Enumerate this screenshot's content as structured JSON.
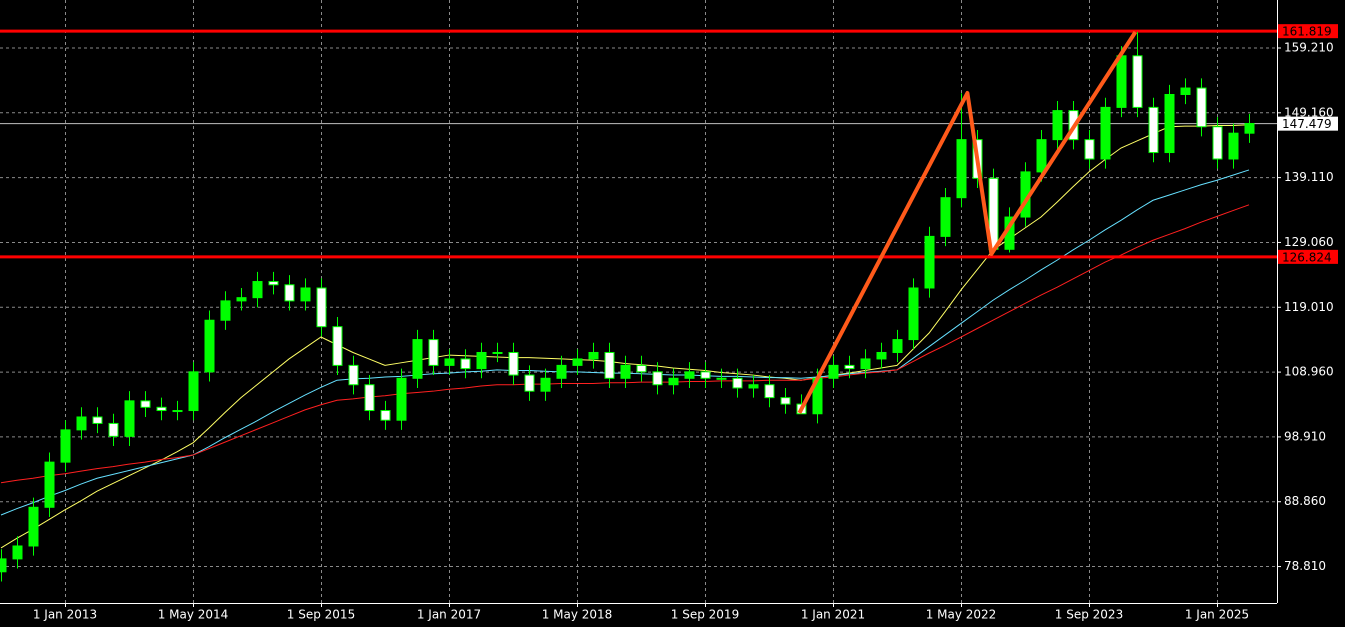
{
  "chart_data": {
    "type": "candlestick",
    "categories": [
      null,
      null,
      null,
      null,
      "1 Jan 2013",
      null,
      null,
      null,
      null,
      null,
      null,
      null,
      "1 May 2014",
      null,
      null,
      null,
      null,
      null,
      null,
      null,
      "1 Sep 2015",
      null,
      null,
      null,
      null,
      null,
      null,
      null,
      "1 Jan 2017",
      null,
      null,
      null,
      null,
      null,
      null,
      null,
      "1 May 2018",
      null,
      null,
      null,
      null,
      null,
      null,
      null,
      "1 Sep 2019",
      null,
      null,
      null,
      null,
      null,
      null,
      null,
      "1 Jan 2021",
      null,
      null,
      null,
      null,
      null,
      null,
      null,
      "1 May 2022",
      null,
      null,
      null,
      null,
      null,
      null,
      null,
      "1 Sep 2023",
      null,
      null,
      null,
      null,
      null,
      null,
      null,
      "1 Jan 2025",
      null,
      null
    ],
    "open": [
      78,
      80,
      82,
      88,
      95,
      100,
      102,
      101,
      99,
      104.5,
      103.5,
      103,
      103,
      109,
      117,
      120,
      120.5,
      123,
      122.5,
      120,
      122,
      116,
      110,
      107,
      103,
      101.5,
      108,
      114,
      110,
      111,
      109.5,
      112,
      112,
      108.5,
      106,
      108,
      110,
      111,
      112,
      108,
      110,
      109,
      107,
      108,
      109,
      108,
      108,
      106.5,
      107,
      105,
      104,
      102.5,
      108,
      110,
      109.5,
      111,
      112,
      114,
      122,
      130,
      136,
      145,
      139,
      128,
      133,
      140,
      145,
      149.5,
      145,
      142,
      150,
      158,
      150,
      143,
      152,
      153,
      147,
      142,
      146
    ],
    "high": [
      81.5,
      83.5,
      89.5,
      96.5,
      101.5,
      103.5,
      103.5,
      102.5,
      106,
      106,
      105,
      104.5,
      110.5,
      118.5,
      121.5,
      122,
      124.5,
      124.5,
      124,
      123.5,
      123.5,
      117.5,
      111.5,
      108.5,
      104.5,
      109.5,
      115.5,
      115.5,
      112.5,
      112.5,
      113.5,
      113.5,
      113.5,
      110,
      109.5,
      111.5,
      112.5,
      113.5,
      113.5,
      111.5,
      111.5,
      110.5,
      109.5,
      110.5,
      110.5,
      109.5,
      109.5,
      108.5,
      108.5,
      106.5,
      105.5,
      109.5,
      111.5,
      111.5,
      112.5,
      113.5,
      115.5,
      123.5,
      131.5,
      137.5,
      152.2,
      146.5,
      140.5,
      134.5,
      141.5,
      146.5,
      151,
      151,
      146.5,
      151.5,
      159.5,
      161.7,
      151.5,
      153.5,
      154.5,
      154.5,
      148.5,
      147.5,
      149
    ],
    "low": [
      76.5,
      78.5,
      80.5,
      86.5,
      93.5,
      98.5,
      99.5,
      97.5,
      97.5,
      102,
      101.5,
      101.5,
      101.5,
      107.5,
      115.5,
      118.5,
      119,
      121,
      118.5,
      118.5,
      114.5,
      108.5,
      105.5,
      101.5,
      100,
      100,
      106.5,
      108.5,
      108.5,
      108,
      108,
      110.5,
      107,
      104.5,
      104.5,
      106.5,
      108.5,
      109.5,
      106.5,
      106.5,
      107.5,
      105.5,
      105.5,
      106.5,
      106.5,
      106.5,
      105,
      105,
      103.5,
      102.5,
      102.6,
      101,
      106.5,
      108,
      108,
      109.5,
      110.5,
      112.5,
      120.5,
      128.5,
      134.5,
      137.5,
      127.3,
      127.5,
      131.5,
      138.5,
      143.5,
      143.5,
      140.5,
      140.5,
      148.5,
      148.5,
      141.5,
      141.5,
      150.5,
      145.5,
      140.5,
      140.5,
      144.5
    ],
    "close": [
      80,
      82,
      88,
      95,
      100,
      102,
      101,
      99,
      104.5,
      103.5,
      103,
      103,
      109,
      117,
      120,
      120.5,
      123,
      122.5,
      120,
      122,
      116,
      110,
      107,
      103,
      101.5,
      108,
      114,
      110,
      111,
      109.5,
      112,
      112,
      108.5,
      106,
      108,
      110,
      111,
      112,
      108,
      110,
      109,
      107,
      108,
      109,
      108,
      108,
      106.5,
      107,
      105,
      104,
      102.5,
      108,
      110,
      109.5,
      111,
      112,
      114,
      122,
      130,
      136,
      145,
      139,
      128,
      133,
      140,
      145,
      149.5,
      145,
      142,
      150,
      158,
      150,
      143,
      152,
      153,
      147,
      142,
      146,
      147.5
    ],
    "up_color": "#00ff00",
    "down_color": "#ffffff",
    "series": [
      {
        "color": "#ffff66",
        "values": [
          81.7,
          83.2,
          84.6,
          86.1,
          87.6,
          89,
          90.5,
          91.7,
          92.9,
          94.1,
          95.3,
          96.6,
          98,
          100.3,
          102.7,
          105,
          107,
          109,
          111,
          112.7,
          114.4,
          113.2,
          112,
          111,
          110,
          110.4,
          110.8,
          111.2,
          111.6,
          111.5,
          111.4,
          111.3,
          111.2,
          111.2,
          111.1,
          111,
          110.9,
          110.8,
          110.6,
          110.3,
          110.1,
          109.9,
          109.6,
          109.4,
          109.2,
          108.9,
          108.7,
          108.5,
          108.2,
          108,
          107.7,
          108.1,
          108.5,
          108.8,
          109.2,
          109.6,
          110,
          112.5,
          115,
          118.3,
          121.7,
          124.8,
          127.9,
          129.6,
          131.3,
          133,
          135.3,
          137.7,
          140,
          141.9,
          143.7,
          144.8,
          145.9,
          147,
          147.1,
          147.1,
          147.2,
          147.2,
          147.3
        ]
      },
      {
        "color": "#66e0ff",
        "values": [
          86.8,
          87.8,
          88.7,
          89.7,
          90.6,
          91.6,
          92.5,
          93.1,
          93.7,
          94.3,
          94.9,
          95.5,
          96.1,
          97.4,
          98.8,
          100.1,
          101.4,
          102.8,
          104.1,
          105.4,
          106.6,
          107.7,
          107.9,
          108,
          108.2,
          108.3,
          108.5,
          108.7,
          108.8,
          109,
          109.1,
          109.3,
          109.2,
          109.2,
          109.1,
          109,
          109,
          108.9,
          108.8,
          108.8,
          108.7,
          108.6,
          108.5,
          108.5,
          108.4,
          108.3,
          108.3,
          108.2,
          108.1,
          108.1,
          108,
          108.2,
          108.4,
          108.7,
          108.9,
          109.1,
          109.3,
          111.1,
          112.9,
          114.7,
          116.5,
          118.3,
          120.1,
          121.7,
          123.2,
          124.8,
          126.3,
          127.9,
          129.4,
          131,
          132.5,
          134.1,
          135.6,
          136.4,
          137.2,
          138,
          138.7,
          139.5,
          140.3
        ]
      },
      {
        "color": "#ff2020",
        "values": [
          91.8,
          92.2,
          92.5,
          92.9,
          93.2,
          93.6,
          94,
          94.3,
          94.7,
          95,
          95.4,
          95.7,
          96.1,
          97.1,
          98.1,
          99.1,
          100.1,
          101.1,
          102.1,
          103.1,
          103.9,
          104.6,
          104.8,
          105.1,
          105.3,
          105.6,
          105.8,
          106,
          106.3,
          106.5,
          106.8,
          107,
          107,
          107.1,
          107.1,
          107.2,
          107.2,
          107.2,
          107.3,
          107.3,
          107.4,
          107.4,
          107.4,
          107.5,
          107.5,
          107.6,
          107.6,
          107.6,
          107.7,
          107.7,
          107.7,
          108,
          108.2,
          108.5,
          108.8,
          109,
          109.3,
          110.6,
          111.9,
          113.1,
          114.4,
          115.7,
          117,
          118.3,
          119.6,
          120.9,
          122.1,
          123.4,
          124.7,
          126,
          127.1,
          128.3,
          129.4,
          130.3,
          131.2,
          132.2,
          133.1,
          134,
          134.9
        ]
      }
    ],
    "zigzag": {
      "color": "#ff5a1a",
      "x": [
        49.9,
        60.4,
        61.9,
        70.9
      ],
      "values": [
        102.62,
        152.23,
        127.27,
        161.69
      ]
    },
    "levels": [
      {
        "value": 161.819,
        "color": "#ff0000"
      },
      {
        "value": 126.824,
        "color": "#ff0000"
      }
    ],
    "last_price": {
      "value": 147.479,
      "color": "#c0c0c0"
    },
    "ylim": [
      73.16,
      166.65
    ],
    "yticks": [
      {
        "value": 159.21,
        "label": "159.210"
      },
      {
        "value": 149.16,
        "label": "149.160"
      },
      {
        "value": 139.11,
        "label": "139.110"
      },
      {
        "value": 129.06,
        "label": "129.060"
      },
      {
        "value": 119.01,
        "label": "119.010"
      },
      {
        "value": 108.96,
        "label": "108.960"
      },
      {
        "value": 98.91,
        "label": "98.910"
      },
      {
        "value": 88.86,
        "label": "88.860"
      },
      {
        "value": 78.81,
        "label": "78.810"
      }
    ],
    "grid": true
  }
}
